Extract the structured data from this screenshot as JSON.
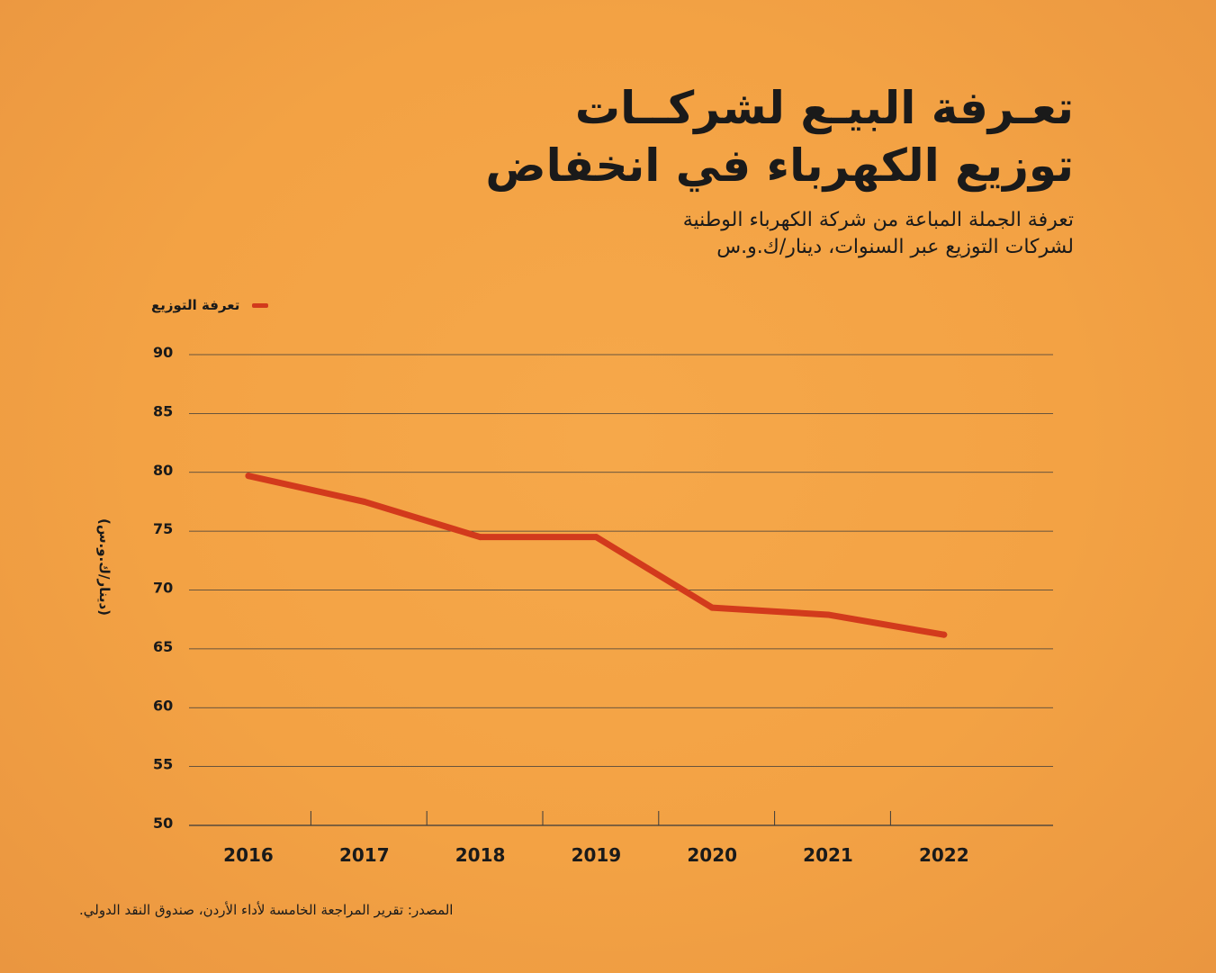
{
  "title_line1": "تعـرفة البيـع لشركــات",
  "title_line2": "توزيع الكهرباء في انخفاض",
  "subtitle_line1": "تعرفة الجملة المباعة من شركة الكهرباء الوطنية",
  "subtitle_line2": "لشركات التوزيع عبر السنوات، دينار/ك.و.س",
  "source": "المصدر: تقرير المراجعة الخامسة لأداء الأردن، صندوق النقد الدولي.",
  "colors": {
    "line": "#d23a1c",
    "grid": "#3a3a3a",
    "background": "#f3a244"
  },
  "chart_data": {
    "type": "line",
    "categories": [
      "2016",
      "2017",
      "2018",
      "2019",
      "2020",
      "2021",
      "2022"
    ],
    "series": [
      {
        "name": "تعرفة التوزيع",
        "values": [
          79.7,
          77.5,
          74.5,
          74.5,
          68.5,
          67.9,
          66.2
        ]
      }
    ],
    "ylabel": "(دينار/ك.و.س)",
    "xlabel": "",
    "ylim": [
      50,
      90
    ],
    "yticks": [
      50,
      55,
      60,
      65,
      70,
      75,
      80,
      85,
      90
    ],
    "grid": true,
    "legend_position": "top-left"
  }
}
